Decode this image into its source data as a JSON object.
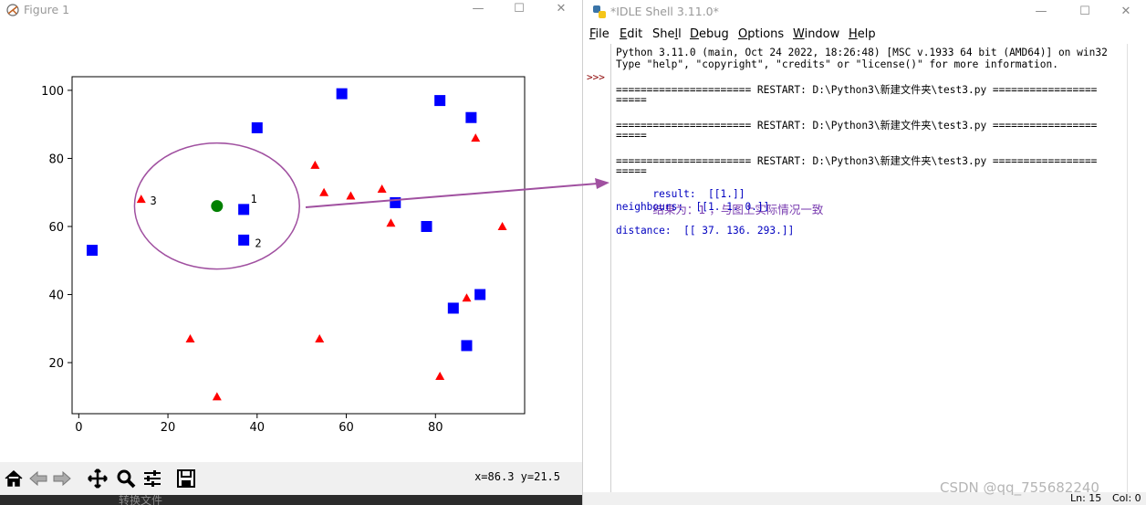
{
  "figure_window": {
    "title": "Figure 1",
    "toolbar": {
      "tools": [
        "home-icon",
        "back-arrow-icon",
        "forward-arrow-icon",
        "pan-icon",
        "zoom-icon",
        "configure-subplots-icon",
        "save-icon"
      ],
      "coord_readout": "x=86.3 y=21.5"
    },
    "taskbar_text": "转换文件"
  },
  "chart_data": {
    "type": "scatter",
    "xlim": [
      -1.5,
      100
    ],
    "ylim": [
      5,
      104
    ],
    "xticks": [
      0,
      20,
      40,
      60,
      80
    ],
    "yticks": [
      20,
      40,
      60,
      80,
      100
    ],
    "grid": false,
    "series": [
      {
        "marker": "square",
        "color": "#0000ff",
        "points": [
          [
            3,
            53
          ],
          [
            40,
            89
          ],
          [
            37,
            65
          ],
          [
            37,
            56
          ],
          [
            59,
            99
          ],
          [
            81,
            97
          ],
          [
            88,
            92
          ],
          [
            71,
            67
          ],
          [
            78,
            60
          ],
          [
            90,
            40
          ],
          [
            84,
            36
          ],
          [
            87,
            25
          ]
        ]
      },
      {
        "marker": "triangle",
        "color": "#ff0000",
        "points": [
          [
            14,
            68
          ],
          [
            25,
            27
          ],
          [
            31,
            10
          ],
          [
            53,
            78
          ],
          [
            55,
            70
          ],
          [
            61,
            69
          ],
          [
            68,
            71
          ],
          [
            70,
            61
          ],
          [
            89,
            86
          ],
          [
            95,
            60
          ],
          [
            87,
            39
          ],
          [
            54,
            27
          ],
          [
            81,
            16
          ]
        ]
      },
      {
        "marker": "circle",
        "color": "#008000",
        "points": [
          [
            31,
            66
          ]
        ]
      }
    ],
    "circle": {
      "cx": 31,
      "cy": 66,
      "r": 18.5,
      "color": "#a050a0"
    },
    "annotations": [
      {
        "text": "1",
        "x": 38.5,
        "y": 68
      },
      {
        "text": "2",
        "x": 39.5,
        "y": 55
      },
      {
        "text": "3",
        "x": 16,
        "y": 67.5
      }
    ]
  },
  "idle_window": {
    "title": "*IDLE Shell 3.11.0*",
    "menus": [
      {
        "pre": "",
        "u": "F",
        "post": "ile"
      },
      {
        "pre": "",
        "u": "E",
        "post": "dit"
      },
      {
        "pre": "She",
        "u": "l",
        "post": "l"
      },
      {
        "pre": "",
        "u": "D",
        "post": "ebug"
      },
      {
        "pre": "",
        "u": "O",
        "post": "ptions"
      },
      {
        "pre": "",
        "u": "W",
        "post": "indow"
      },
      {
        "pre": "",
        "u": "H",
        "post": "elp"
      }
    ],
    "prompt": ">>>",
    "lines": [
      "Python 3.11.0 (main, Oct 24 2022, 18:26:48) [MSC v.1933 64 bit (AMD64)] on win32",
      "Type \"help\", \"copyright\", \"credits\" or \"license()\" for more information.",
      "====================== RESTART: D:\\Python3\\新建文件夹\\test3.py =================",
      "=====",
      "====================== RESTART: D:\\Python3\\新建文件夹\\test3.py =================",
      "=====",
      "====================== RESTART: D:\\Python3\\新建文件夹\\test3.py =================",
      "====="
    ],
    "result_line": "result:  [[1.]]",
    "result_annotation": "结果为：1 ，与图上实际情况一致",
    "neighbours_line": "neighbours:  [[1. 1. 0.]]",
    "distance_line": "distance:  [[ 37. 136. 293.]]",
    "status": {
      "ln": "Ln: 15",
      "col": "Col: 0"
    }
  },
  "watermark": "CSDN @qq_755682240"
}
